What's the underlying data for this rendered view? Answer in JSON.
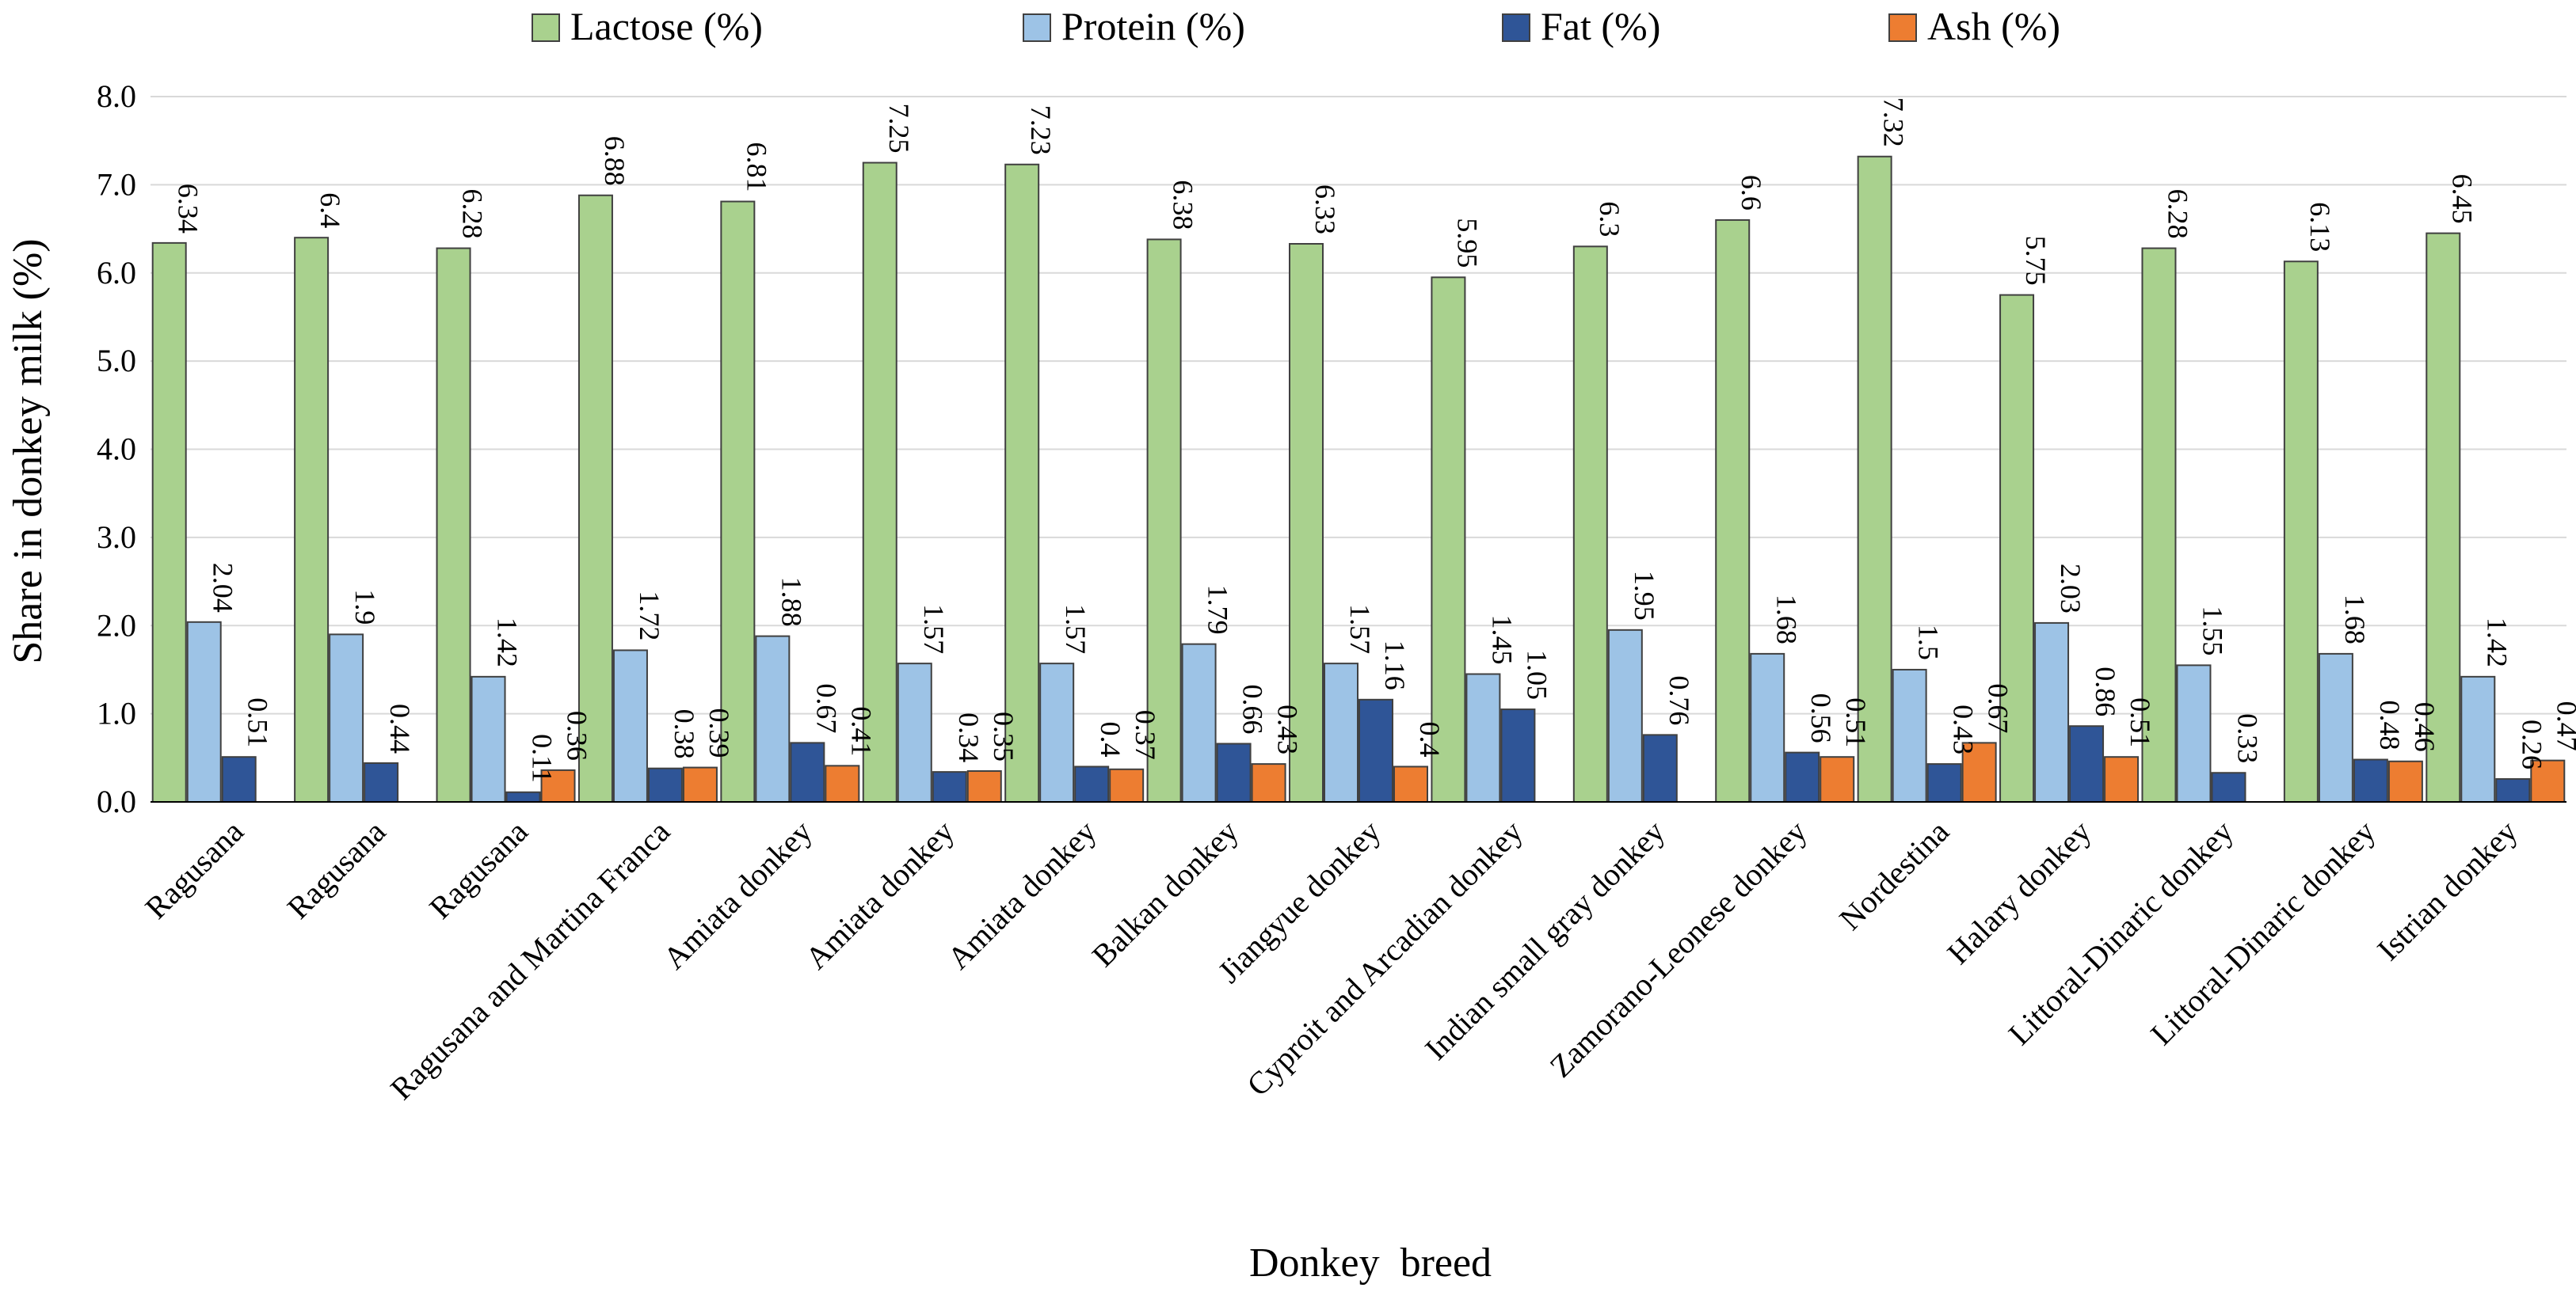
{
  "chart_data": {
    "type": "bar",
    "title": "",
    "xlabel": "Donkey  breed",
    "ylabel": "Share in donkey milk (%)",
    "ylim": [
      0,
      8
    ],
    "yticks": [
      "0.0",
      "1.0",
      "2.0",
      "3.0",
      "4.0",
      "5.0",
      "6.0",
      "7.0",
      "8.0"
    ],
    "grid": true,
    "legend_position": "top",
    "categories": [
      "Ragusana",
      "Ragusana",
      "Ragusana",
      "Ragusana and Martina Franca",
      "Amiata donkey",
      "Amiata donkey",
      "Amiata donkey",
      "Balkan donkey",
      "Jiangyue donkey",
      "Cyproit and Arcadian donkey",
      "Indian small gray donkey",
      "Zamorano-Leonese donkey",
      "Nordestina",
      "Halary donkey",
      "Littoral-Dinaric donkey",
      "Littoral-Dinaric donkey",
      "Istrian donkey"
    ],
    "series": [
      {
        "name": "Lactose (%)",
        "color": "#a9d18e",
        "values": [
          6.34,
          6.4,
          6.28,
          6.88,
          6.81,
          7.25,
          7.23,
          6.38,
          6.33,
          5.95,
          6.3,
          6.6,
          7.32,
          5.75,
          6.28,
          6.13,
          6.45
        ],
        "labels": [
          "6.34",
          "6.4",
          "6.28",
          "6.88",
          "6.81",
          "7.25",
          "7.23",
          "6.38",
          "6.33",
          "5.95",
          "6.3",
          "6.6",
          "7.32",
          "5.75",
          "6.28",
          "6.13",
          "6.45"
        ]
      },
      {
        "name": "Protein (%)",
        "color": "#9dc3e6",
        "values": [
          2.04,
          1.9,
          1.42,
          1.72,
          1.88,
          1.57,
          1.57,
          1.79,
          1.57,
          1.45,
          1.95,
          1.68,
          1.5,
          2.03,
          1.55,
          1.68,
          1.42
        ],
        "labels": [
          "2.04",
          "1.9",
          "1.42",
          "1.72",
          "1.88",
          "1.57",
          "1.57",
          "1.79",
          "1.57",
          "1.45",
          "1.95",
          "1.68",
          "1.5",
          "2.03",
          "1.55",
          "1.68",
          "1.42"
        ]
      },
      {
        "name": "Fat (%)",
        "color": "#2f5597",
        "values": [
          0.51,
          0.44,
          0.11,
          0.38,
          0.67,
          0.34,
          0.4,
          0.66,
          1.16,
          1.05,
          0.76,
          0.56,
          0.43,
          0.86,
          0.33,
          0.48,
          0.26
        ],
        "labels": [
          "0.51",
          "0.44",
          "0.11",
          "0.38",
          "0.67",
          "0.34",
          "0.4",
          "0.66",
          "1.16",
          "1.05",
          "0.76",
          "0.56",
          "0.43",
          "0.86",
          "0.33",
          "0.48",
          "0.26"
        ]
      },
      {
        "name": "Ash (%)",
        "color": "#ed7d31",
        "values": [
          null,
          null,
          0.36,
          0.39,
          0.41,
          0.35,
          0.37,
          0.43,
          0.4,
          null,
          null,
          0.51,
          0.67,
          0.51,
          null,
          0.46,
          0.47
        ],
        "labels": [
          null,
          null,
          "0.36",
          "0.39",
          "0.41",
          "0.35",
          "0.37",
          "0.43",
          "0.4",
          null,
          null,
          "0.51",
          "0.67",
          "0.51",
          null,
          "0.46",
          "0.47"
        ]
      }
    ]
  }
}
